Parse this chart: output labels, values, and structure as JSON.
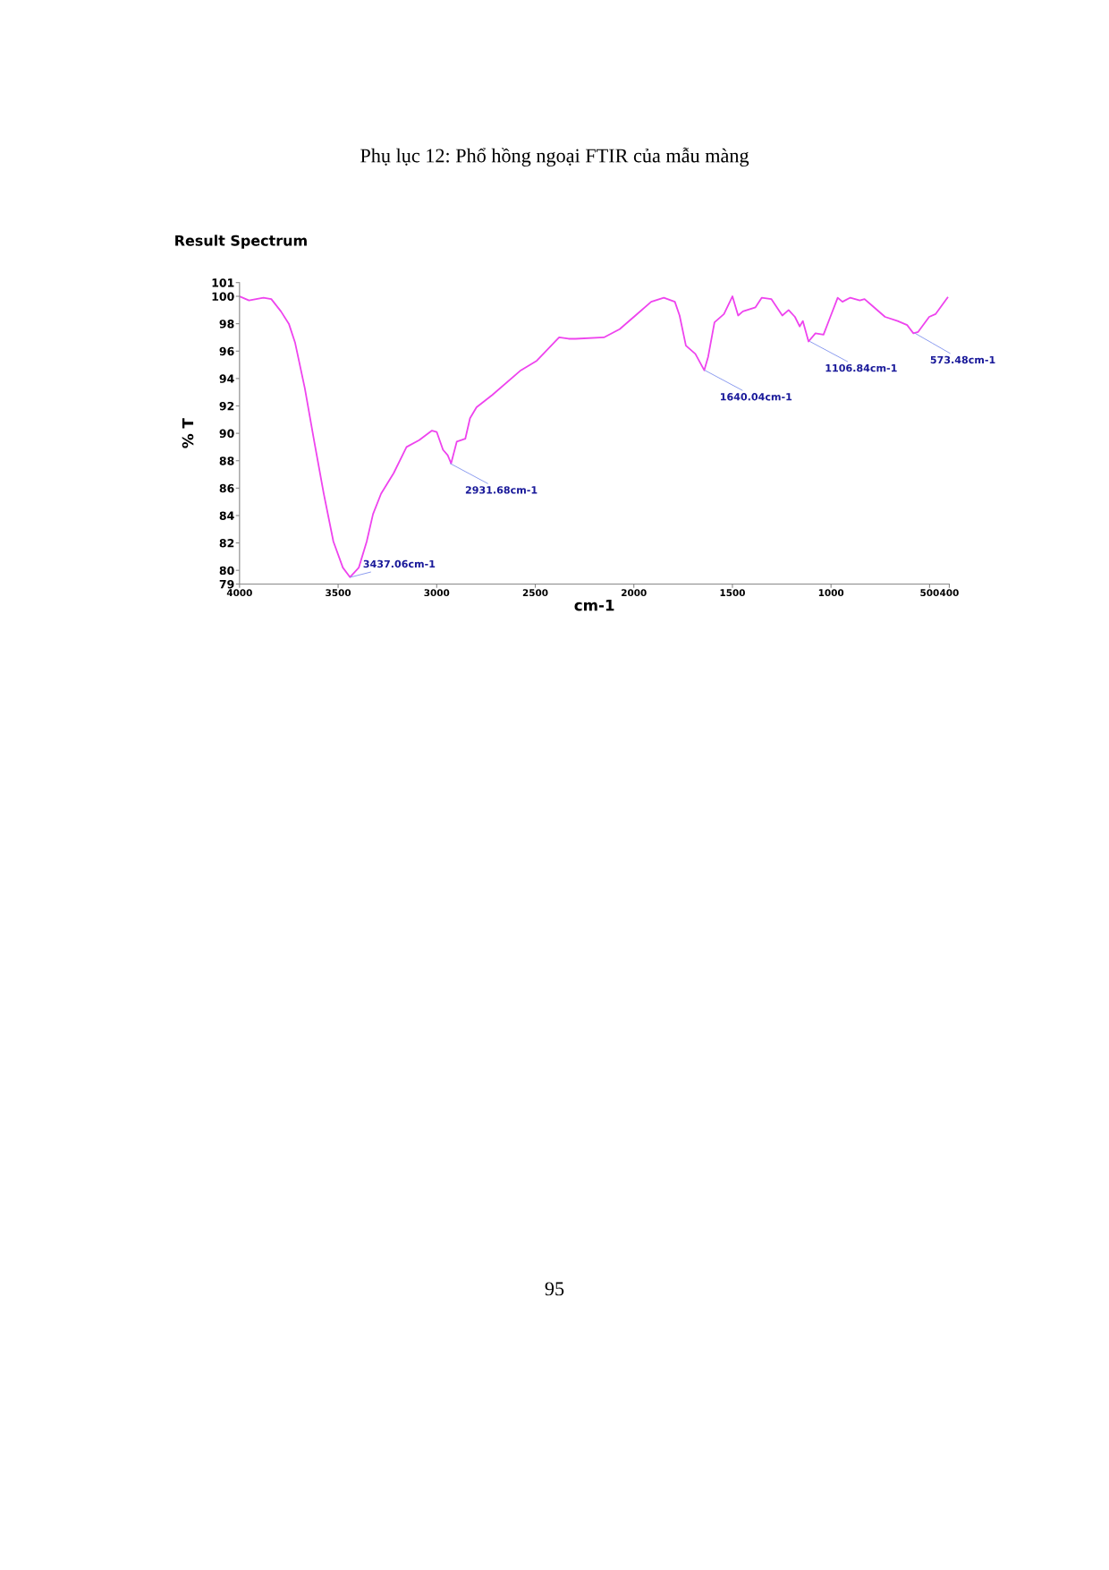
{
  "chart_data": {
    "type": "line",
    "title": "Result Spectrum",
    "xlabel": "cm-1",
    "ylabel": "% T",
    "xlim": [
      4000,
      400
    ],
    "xticks": [
      4000,
      3500,
      3000,
      2500,
      2000,
      1500,
      1000,
      500,
      400
    ],
    "ylim": [
      79,
      101
    ],
    "yticks": [
      79,
      80,
      82,
      84,
      86,
      88,
      90,
      92,
      94,
      96,
      98,
      100,
      101
    ],
    "grid": false,
    "legend": false,
    "marker": "none",
    "line_style": "solid",
    "series": [
      {
        "color": "#ee44ee",
        "x": [
          4000,
          3952,
          3879,
          3839,
          3790,
          3750,
          3718,
          3669,
          3621,
          3573,
          3524,
          3476,
          3440,
          3395,
          3355,
          3323,
          3282,
          3218,
          3153,
          3089,
          3024,
          3000,
          2968,
          2944,
          2927,
          2898,
          2855,
          2831,
          2798,
          2718,
          2573,
          2492,
          2379,
          2331,
          2296,
          2152,
          2072,
          1992,
          1912,
          1848,
          1792,
          1768,
          1736,
          1688,
          1643,
          1623,
          1591,
          1543,
          1500,
          1471,
          1447,
          1383,
          1351,
          1303,
          1247,
          1215,
          1183,
          1159,
          1143,
          1114,
          1079,
          1038,
          1006,
          966,
          942,
          902,
          854,
          830,
          790,
          726,
          662,
          614,
          582,
          558,
          502,
          470,
          409
        ],
        "values": [
          100.0,
          99.7,
          99.9,
          99.8,
          98.9,
          98.0,
          96.6,
          93.3,
          89.4,
          85.6,
          82.1,
          80.2,
          79.5,
          80.2,
          82.1,
          84.1,
          85.6,
          87.1,
          89.0,
          89.5,
          90.2,
          90.1,
          88.8,
          88.4,
          87.8,
          89.4,
          89.6,
          91.1,
          91.9,
          92.8,
          94.6,
          95.3,
          97.0,
          96.9,
          96.9,
          97.0,
          97.6,
          98.6,
          99.6,
          99.9,
          99.6,
          98.6,
          96.4,
          95.8,
          94.6,
          95.6,
          98.1,
          98.7,
          100.0,
          98.6,
          98.9,
          99.2,
          99.9,
          99.8,
          98.6,
          99.0,
          98.5,
          97.8,
          98.2,
          96.7,
          97.3,
          97.2,
          98.4,
          99.9,
          99.6,
          99.9,
          99.7,
          99.8,
          99.3,
          98.5,
          98.2,
          97.9,
          97.3,
          97.4,
          98.5,
          98.7,
          99.9
        ]
      }
    ],
    "annotations": [
      {
        "text": "3437.06cm-1",
        "x": 3437.06,
        "y": 79.5
      },
      {
        "text": "2931.68cm-1",
        "x": 2931.68,
        "y": 87.8
      },
      {
        "text": "1640.04cm-1",
        "x": 1640.04,
        "y": 94.6
      },
      {
        "text": "1106.84cm-1",
        "x": 1106.84,
        "y": 96.7
      },
      {
        "text": "573.48cm-1",
        "x": 573.48,
        "y": 97.3
      },
      "Phụ lục 12: Phổ hồng ngoại FTIR của mẫu màng",
      "95"
    ]
  }
}
